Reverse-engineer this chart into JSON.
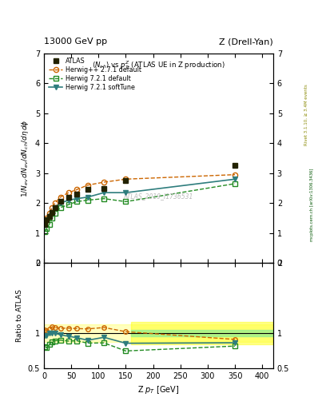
{
  "title_left": "13000 GeV pp",
  "title_right": "Z (Drell-Yan)",
  "panel_title": "$\\langle N_{ch}\\rangle$ vs $p^Z_T$ (ATLAS UE in Z production)",
  "watermark": "ATLAS_2019_I1736531",
  "right_label_top": "Rivet 3.1.10, ≥ 3.4M events",
  "right_label_bottom": "mcplots.cern.ch [arXiv:1306.3436]",
  "ylabel_main": "$1/N_{ev}\\,dN_{ev}/dN_{ch}/d\\eta\\,d\\phi$",
  "ylabel_ratio": "Ratio to ATLAS",
  "xlabel": "Z $p_T$ [GeV]",
  "ylim_main": [
    0,
    7
  ],
  "ylim_ratio": [
    0.5,
    2.0
  ],
  "xlim": [
    0,
    420
  ],
  "yticks_main": [
    0,
    1,
    2,
    3,
    4,
    5,
    6,
    7
  ],
  "yticks_ratio": [
    0.5,
    1.0,
    2.0
  ],
  "atlas_x": [
    2,
    5,
    10,
    15,
    20,
    30,
    45,
    60,
    80,
    110,
    150,
    350
  ],
  "atlas_y": [
    1.3,
    1.45,
    1.55,
    1.7,
    1.85,
    2.05,
    2.2,
    2.3,
    2.45,
    2.5,
    2.75,
    3.25
  ],
  "herwig_pp_x": [
    2,
    5,
    10,
    15,
    20,
    30,
    45,
    60,
    80,
    110,
    150,
    350
  ],
  "herwig_pp_y": [
    1.35,
    1.5,
    1.65,
    1.85,
    2.0,
    2.2,
    2.35,
    2.45,
    2.6,
    2.7,
    2.8,
    2.95
  ],
  "herwig721d_x": [
    2,
    5,
    10,
    15,
    20,
    30,
    45,
    60,
    80,
    110,
    150,
    350
  ],
  "herwig721d_y": [
    1.05,
    1.15,
    1.3,
    1.5,
    1.65,
    1.85,
    1.95,
    2.05,
    2.1,
    2.15,
    2.05,
    2.65
  ],
  "herwig721s_x": [
    2,
    5,
    10,
    15,
    20,
    30,
    45,
    60,
    80,
    110,
    150,
    350
  ],
  "herwig721s_y": [
    1.25,
    1.4,
    1.55,
    1.7,
    1.85,
    2.0,
    2.1,
    2.15,
    2.2,
    2.35,
    2.35,
    2.8
  ],
  "ratio_pp_y": [
    1.04,
    1.035,
    1.06,
    1.09,
    1.08,
    1.07,
    1.07,
    1.065,
    1.06,
    1.08,
    1.02,
    0.91
  ],
  "ratio_721d_y": [
    0.81,
    0.79,
    0.84,
    0.88,
    0.89,
    0.9,
    0.886,
    0.891,
    0.857,
    0.86,
    0.745,
    0.815
  ],
  "ratio_721s_y": [
    0.96,
    0.965,
    1.0,
    1.0,
    1.0,
    0.975,
    0.955,
    0.935,
    0.898,
    0.94,
    0.855,
    0.862
  ],
  "atlas_color": "#222200",
  "herwig_pp_color": "#cc6600",
  "herwig721d_color": "#228B22",
  "herwig721s_color": "#2E7D7D",
  "band_xstart": 160,
  "band_yellow_lo": 0.88,
  "band_yellow_hi": 1.12,
  "band_green_lo": 0.95,
  "band_green_hi": 1.05,
  "narrow_yellow_lo": 0.84,
  "narrow_yellow_hi": 1.16
}
